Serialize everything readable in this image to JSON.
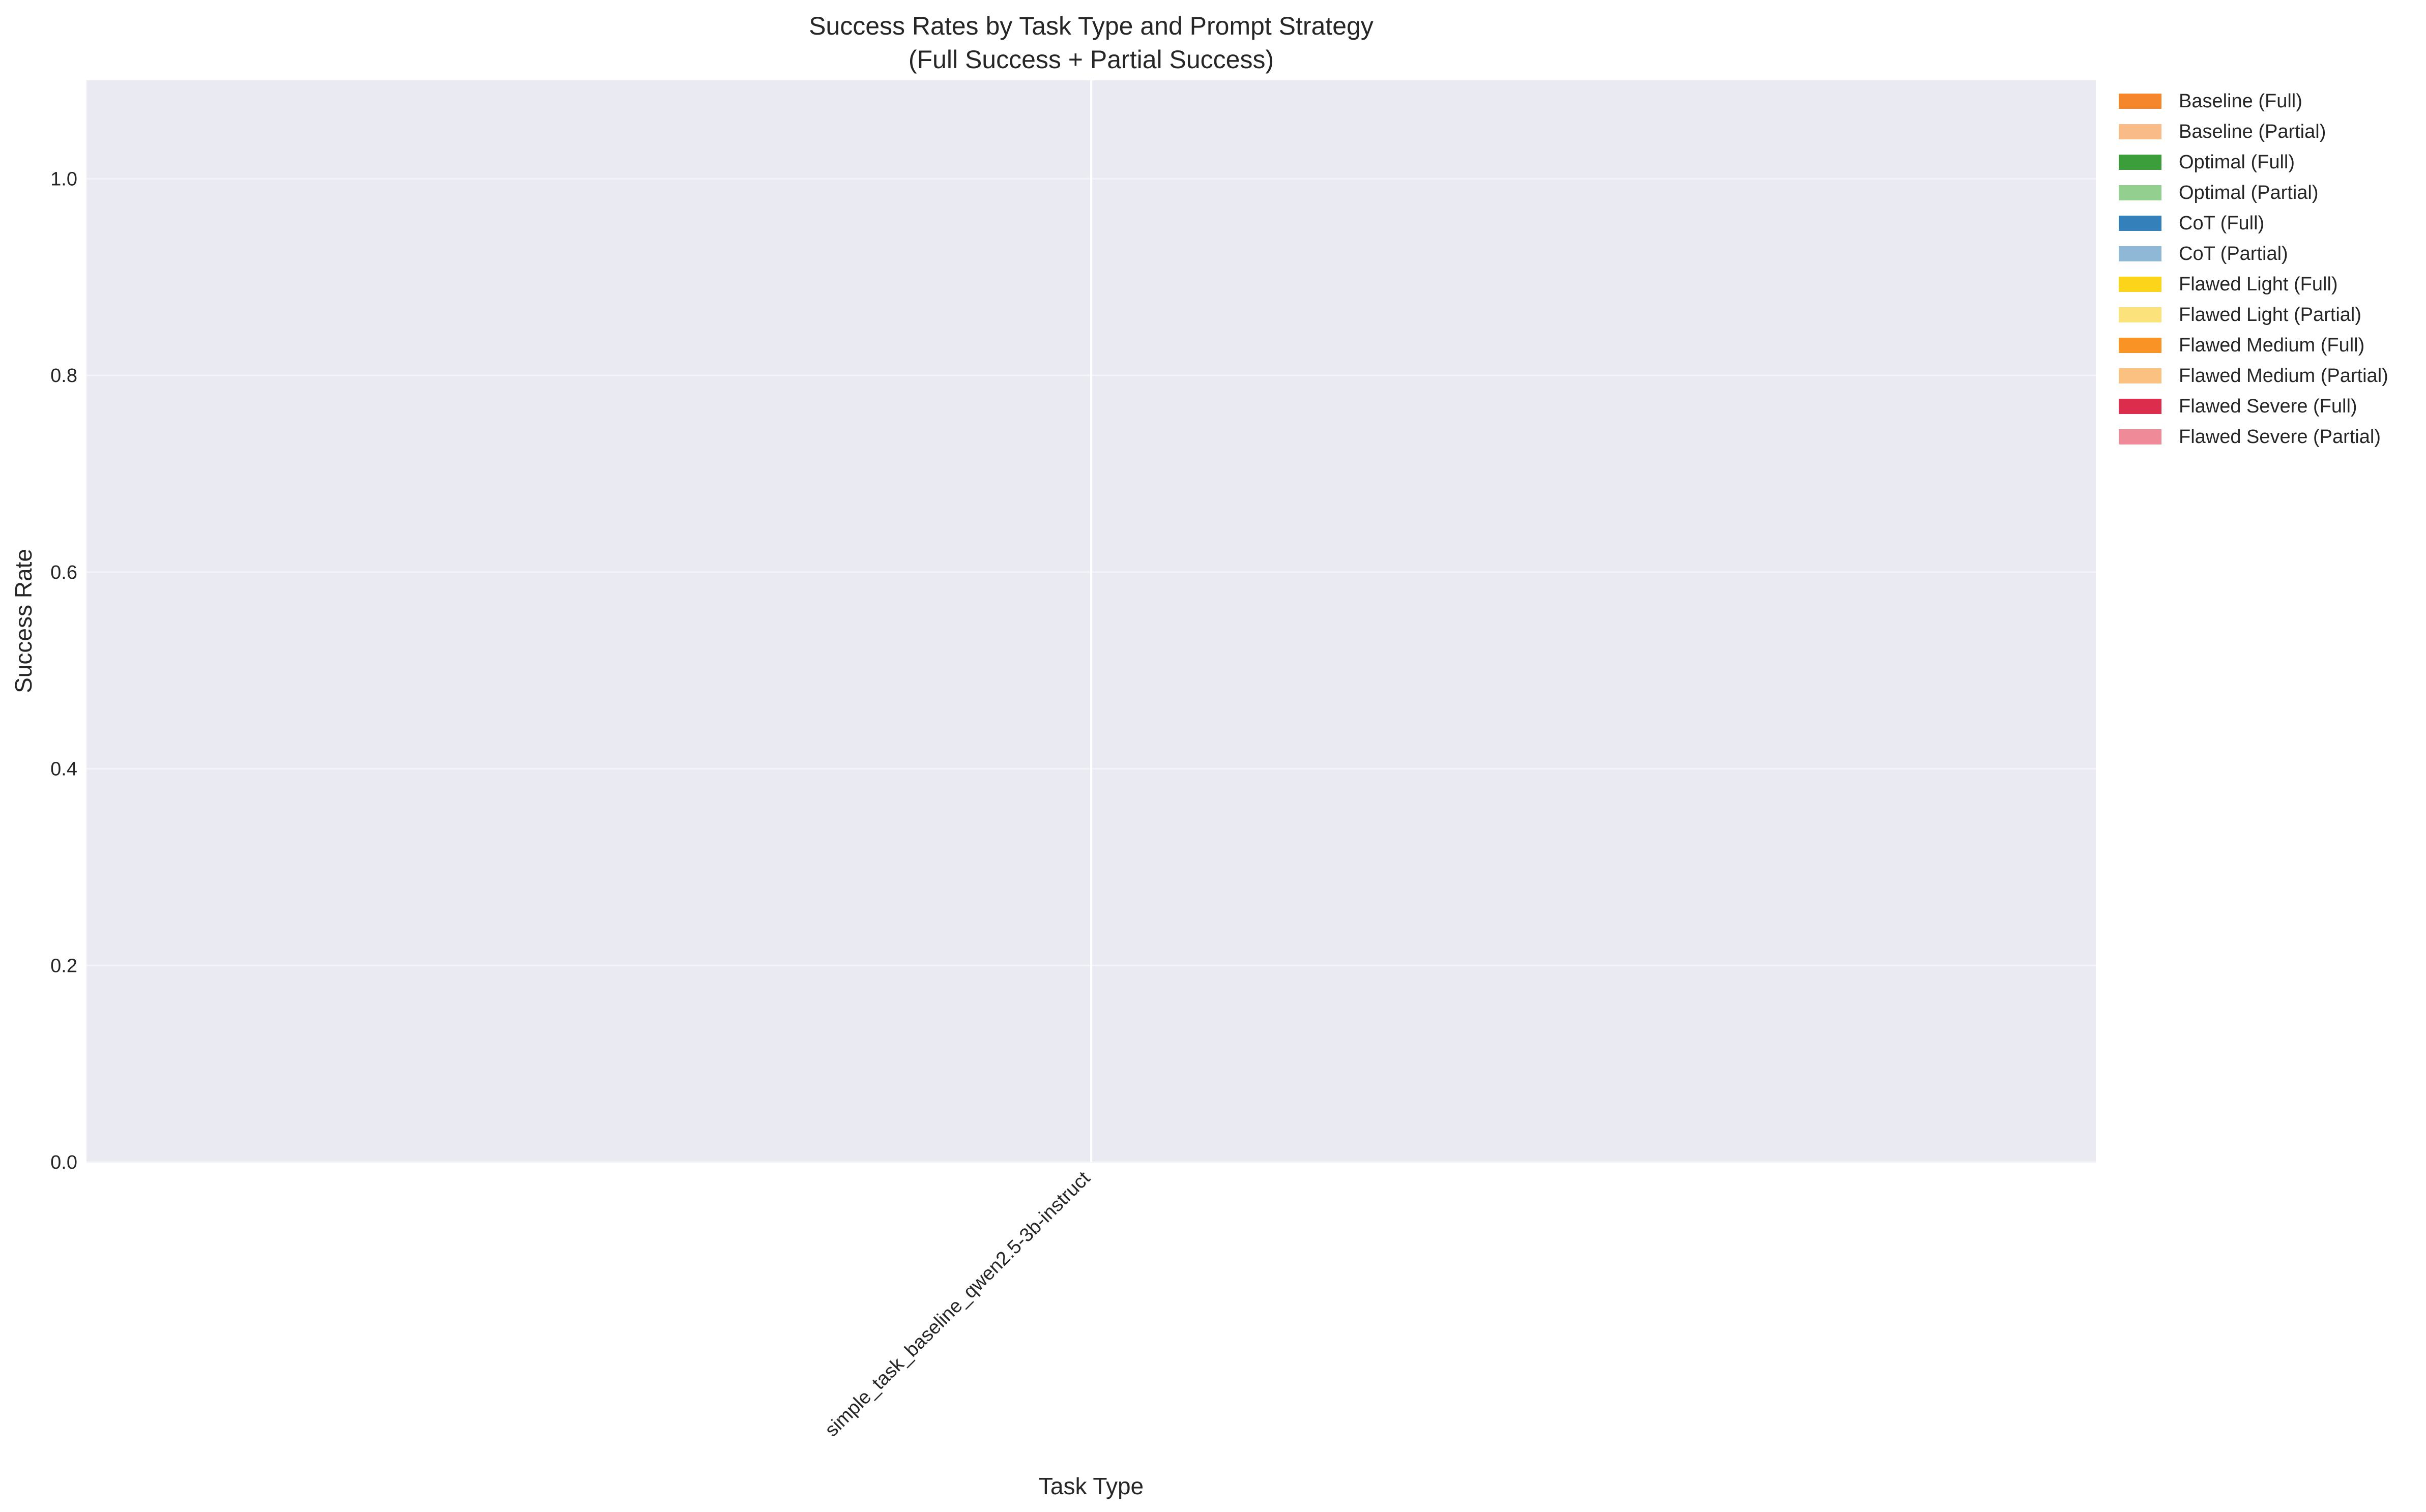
{
  "chart_data": {
    "type": "bar",
    "title": "Success Rates by Task Type and Prompt Strategy",
    "subtitle": "(Full Success + Partial Success)",
    "xlabel": "Task Type",
    "ylabel": "Success Rate",
    "ylim": [
      0,
      1.1
    ],
    "yticks": [
      0.0,
      0.2,
      0.4,
      0.6,
      0.8,
      1.0
    ],
    "ytick_labels": [
      "0.0",
      "0.2",
      "0.4",
      "0.6",
      "0.8",
      "1.0"
    ],
    "categories": [
      "simple_task_baseline_qwen2.5-3b-instruct"
    ],
    "grid": true,
    "legend_position": "outside-right",
    "background_color": "#eaeaf2",
    "series": [
      {
        "name": "Baseline (Full)",
        "color": "#f5862b",
        "values": [
          0
        ]
      },
      {
        "name": "Baseline (Partial)",
        "color": "#f9bc88",
        "values": [
          0
        ]
      },
      {
        "name": "Optimal (Full)",
        "color": "#3b9e3b",
        "values": [
          0
        ]
      },
      {
        "name": "Optimal (Partial)",
        "color": "#93cf8f",
        "values": [
          0
        ]
      },
      {
        "name": "CoT (Full)",
        "color": "#3480bb",
        "values": [
          0
        ]
      },
      {
        "name": "CoT (Partial)",
        "color": "#8eb8d6",
        "values": [
          0
        ]
      },
      {
        "name": "Flawed Light (Full)",
        "color": "#fcd419",
        "values": [
          0
        ]
      },
      {
        "name": "Flawed Light (Partial)",
        "color": "#fce27a",
        "values": [
          0
        ]
      },
      {
        "name": "Flawed Medium (Full)",
        "color": "#fa9326",
        "values": [
          0
        ]
      },
      {
        "name": "Flawed Medium (Partial)",
        "color": "#fac180",
        "values": [
          0
        ]
      },
      {
        "name": "Flawed Severe (Full)",
        "color": "#dc2d4d",
        "values": [
          0
        ]
      },
      {
        "name": "Flawed Severe (Partial)",
        "color": "#ef8a99",
        "values": [
          0
        ]
      }
    ]
  }
}
